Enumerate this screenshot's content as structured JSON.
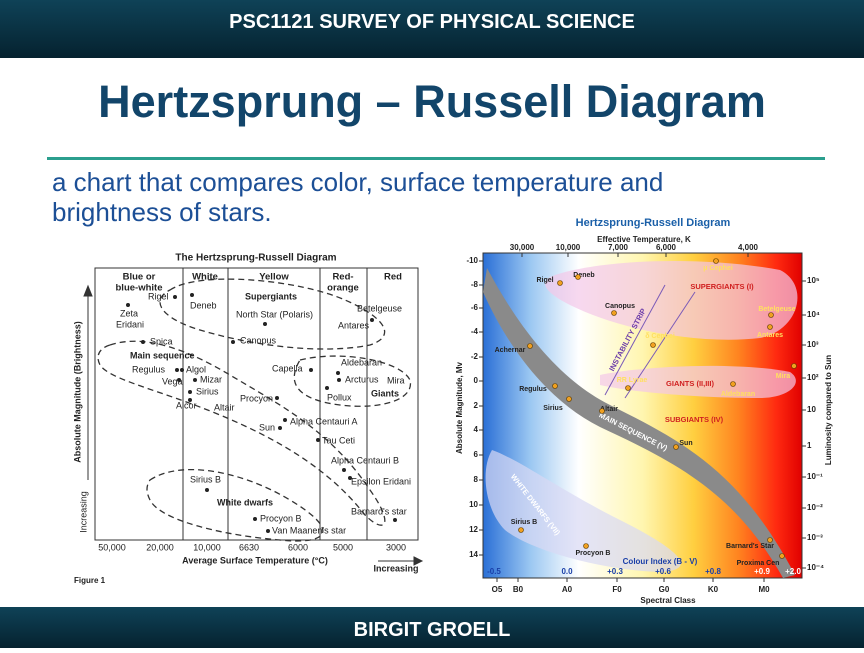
{
  "header": {
    "course": "PSC1121 SURVEY OF PHYSICAL SCIENCE",
    "footer": "BIRGIT GROELL"
  },
  "title": "Hertzsprung – Russell Diagram",
  "subtitle": "a chart that compares color, surface temperature and brightness of stars.",
  "left_figure": {
    "title": "The Hertzsprung-Russell Diagram",
    "columns": [
      [
        "Blue or",
        "blue-white"
      ],
      [
        "White"
      ],
      [
        "Yellow"
      ],
      [
        "Red-",
        "orange"
      ],
      [
        "Red"
      ]
    ],
    "y_label": "Absolute Magnitude (Brightness)",
    "y_direction": "Increasing",
    "x_label": "Average Surface Temperature (°C)",
    "x_direction": "Increasing",
    "temperatures": [
      "50,000",
      "20,000",
      "10,000",
      "6630",
      "6000",
      "5000",
      "3000"
    ],
    "regions": [
      "Supergiants",
      "Main sequence",
      "Giants",
      "White dwarfs"
    ],
    "stars": [
      "Rigel",
      "Deneb",
      "Zeta",
      "Eridani",
      "North Star (Polaris)",
      "Betelgeuse",
      "Antares",
      "Spica",
      "Canopus",
      "Aldebaran",
      "Regulus",
      "Algol",
      "Capella",
      "Vega",
      "Mizar",
      "Arcturus",
      "Mira",
      "Sirius",
      "Pollux",
      "Procyon",
      "Alcor",
      "Altair",
      "Alpha Centauri A",
      "Sun",
      "Tau Ceti",
      "Alpha Centauri B",
      "Sirius B",
      "Epsilon Eridani",
      "Barnard's star",
      "Procyon B",
      "Van Maanen's star"
    ],
    "caption": "Figure 1"
  },
  "right_figure": {
    "title": "Hertzsprung-Russell Diagram",
    "top_axis_label": "Effective Temperature, K",
    "top_ticks": [
      "30,000",
      "10,000",
      "7,000",
      "6,000",
      "4,000"
    ],
    "left_label": "Absolute Magnitude, Mv",
    "left_ticks": [
      "-10",
      "-8",
      "-6",
      "-4",
      "-2",
      "0",
      "2",
      "4",
      "6",
      "8",
      "10",
      "12",
      "14"
    ],
    "right_label": "Luminosity compared to Sun",
    "right_ticks": [
      "10⁵",
      "10⁴",
      "10³",
      "10²",
      "10",
      "1",
      "10⁻¹",
      "10⁻²",
      "10⁻³",
      "10⁻⁴"
    ],
    "colour_index_label": "Colour Index (B - V)",
    "colour_index": [
      "-0.5",
      "0.0",
      "+0.3",
      "+0.6",
      "+0.8",
      "+0.9",
      "+2.0"
    ],
    "spectral_label": "Spectral Class",
    "spectral_classes": [
      "O5",
      "B0",
      "A0",
      "F0",
      "G0",
      "K0",
      "M0"
    ],
    "regions": [
      "SUPERGIANTS (I)",
      "INSTABILITY STRIP",
      "GIANTS (II,III)",
      "SUBGIANTS (IV)",
      "MAIN SEQUENCE (V)",
      "WHITE DWARFS (VII)"
    ],
    "stars": [
      "Rigel",
      "Deneb",
      "μ Cephei",
      "Betelgeuse",
      "Antares",
      "Canopus",
      "δ Cephei",
      "Achernar",
      "RR Lyrae",
      "Mira",
      "Aldebaran",
      "Regulus",
      "Sirius",
      "Altair",
      "Sun",
      "Sirius B",
      "Procyon B",
      "Barnard's Star",
      "Proxima Cen"
    ]
  }
}
